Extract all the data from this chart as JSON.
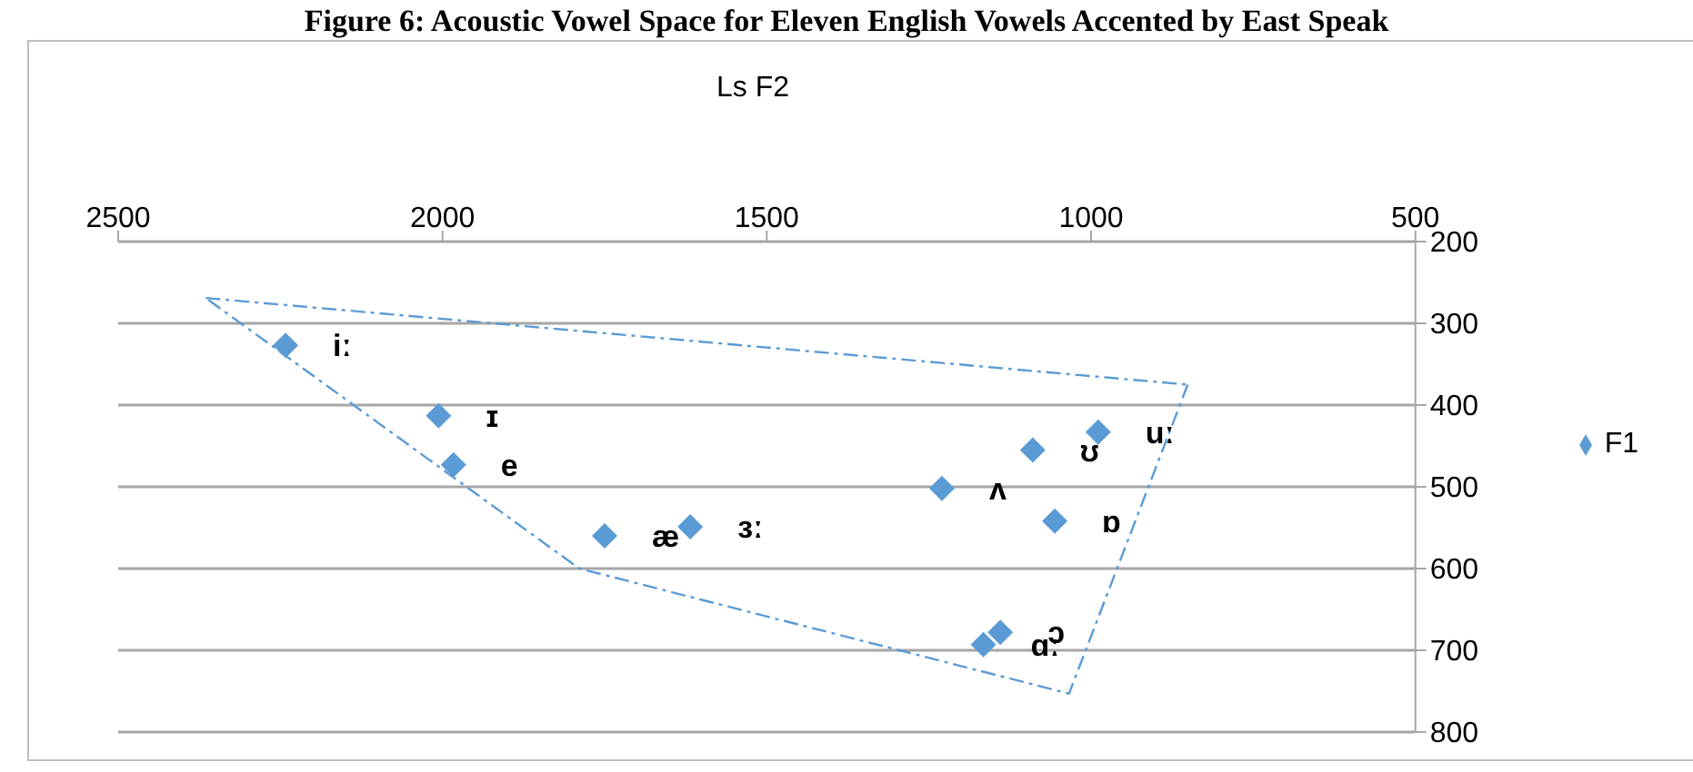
{
  "chart_data": {
    "type": "scatter",
    "title": "Figure 6: Acoustic Vowel Space for Eleven English Vowels Accented by East Speak",
    "xlabel": "Ls F2",
    "x": [
      2242,
      2006,
      1983,
      1750,
      1618,
      1230,
      1090,
      989,
      1056,
      1166,
      1140
    ],
    "series": [
      {
        "name": "F1",
        "color": "#5b9bd5",
        "marker": "diamond",
        "values": [
          327,
          413,
          473,
          560,
          549,
          502,
          455,
          433,
          542,
          693,
          678
        ]
      },
      {
        "type": "line",
        "color": "#5b9bd5",
        "line_style": "dashed",
        "marker": "none",
        "x": [
          2365,
          851
        ],
        "values": [
          269,
          375
        ]
      },
      {
        "type": "line",
        "color": "#5b9bd5",
        "line_style": "dashed",
        "marker": "none",
        "x": [
          851,
          1034,
          1789,
          2365
        ],
        "values": [
          375,
          753,
          600,
          269
        ]
      }
    ],
    "xlim": [
      2500,
      500
    ],
    "xticks": [
      2500,
      2000,
      1500,
      1000,
      500
    ],
    "ylim": [
      800,
      200
    ],
    "yticks": [
      200,
      300,
      400,
      500,
      600,
      700,
      800
    ],
    "grid": "y",
    "legend": "right",
    "annotations": [
      {
        "text": "iː",
        "x": 2242,
        "y": 327
      },
      {
        "text": "ɪ",
        "x": 2006,
        "y": 413
      },
      {
        "text": "e",
        "x": 1983,
        "y": 473
      },
      {
        "text": "æ",
        "x": 1750,
        "y": 560
      },
      {
        "text": "ɜː",
        "x": 1618,
        "y": 549
      },
      {
        "text": "ʌ",
        "x": 1230,
        "y": 502
      },
      {
        "text": "ʊ",
        "x": 1090,
        "y": 455
      },
      {
        "text": "uː",
        "x": 989,
        "y": 433
      },
      {
        "text": "ɒ",
        "x": 1056,
        "y": 542
      },
      {
        "text": "ɑː",
        "x": 1166,
        "y": 693
      },
      {
        "text": "ɔ",
        "x": 1140,
        "y": 678
      }
    ]
  }
}
